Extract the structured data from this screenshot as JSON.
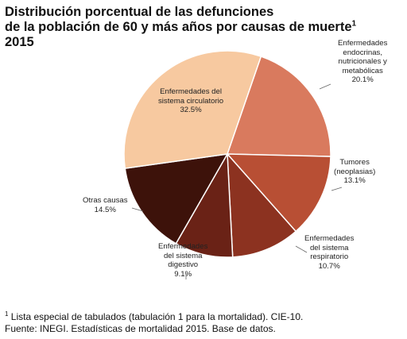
{
  "title": {
    "line1": "Distribución porcentual de las defunciones",
    "line2": "de la población de 60 y más años por causas de muerte",
    "sup": "1",
    "line3": "2015"
  },
  "chart_data": {
    "type": "pie",
    "slices": [
      {
        "label_lines": [
          "Enfermedades",
          "endocrinas,",
          "nutricionales y",
          "metabólicas"
        ],
        "value_text": "20.1%",
        "value": 20.1,
        "color": "#d97a5e"
      },
      {
        "label_lines": [
          "Tumores",
          "(neoplasias)"
        ],
        "value_text": "13.1%",
        "value": 13.1,
        "color": "#b84f34"
      },
      {
        "label_lines": [
          "Enfermedades",
          "del sistema",
          "respiratorio"
        ],
        "value_text": "10.7%",
        "value": 10.7,
        "color": "#8c3220"
      },
      {
        "label_lines": [
          "Enfermedades",
          "del sistema",
          "digestivo"
        ],
        "value_text": "9.1%",
        "value": 9.1,
        "color": "#6a2216"
      },
      {
        "label_lines": [
          "Otras causas"
        ],
        "value_text": "14.5%",
        "value": 14.5,
        "color": "#3d120a"
      },
      {
        "label_lines": [
          "Enfermedades del",
          "sistema circulatorio"
        ],
        "value_text": "32.5%",
        "value": 32.5,
        "color": "#f7c9a0"
      }
    ]
  },
  "notes": {
    "sup": "1",
    "line1": " Lista especial de tabulados (tabulación 1 para la mortalidad). CIE-10.",
    "line2": "Fuente: INEGI. Estadísticas de mortalidad 2015. Base de datos."
  }
}
